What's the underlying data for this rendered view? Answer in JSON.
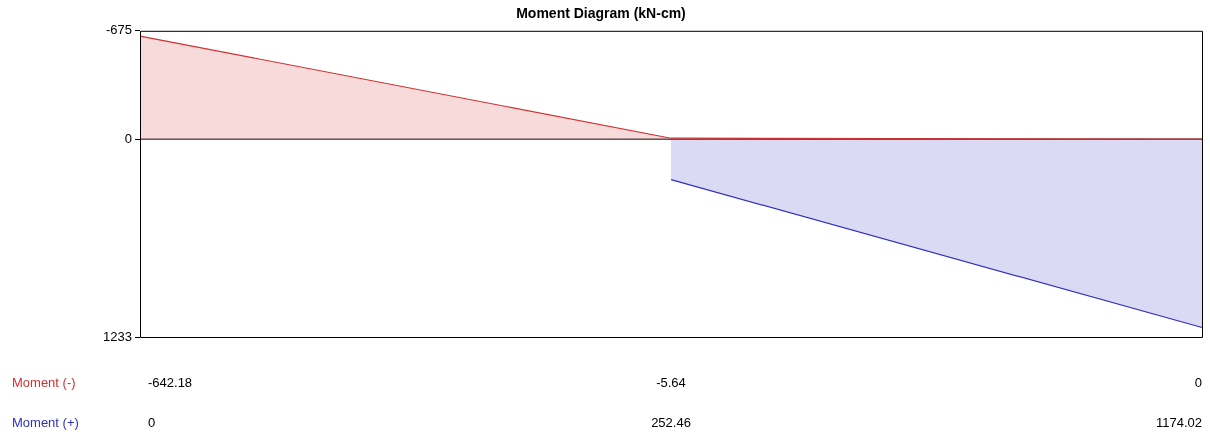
{
  "chart_data": {
    "type": "area",
    "title": "Moment Diagram (kN-cm)",
    "categories": [
      null,
      null,
      null
    ],
    "ylim": [
      1233,
      -675
    ],
    "yticks": [
      -675,
      0,
      1233
    ],
    "tick_labels": "y",
    "grid": false,
    "legend": false,
    "marker": "none",
    "ref_lines": [
      {
        "axis": "y",
        "value": 0,
        "color": "#000000"
      }
    ],
    "series": [
      {
        "name": "Moment (-)",
        "color": "#d03030",
        "values": [
          -642.18,
          -5.64,
          0
        ],
        "value_labels": [
          "-642.18",
          "-5.64",
          "0"
        ]
      },
      {
        "name": "Moment (+)",
        "color": "#3030c0",
        "values": [
          null,
          252.46,
          1174.02
        ],
        "value_labels": [
          "0",
          "252.46",
          "1174.02"
        ]
      }
    ]
  }
}
